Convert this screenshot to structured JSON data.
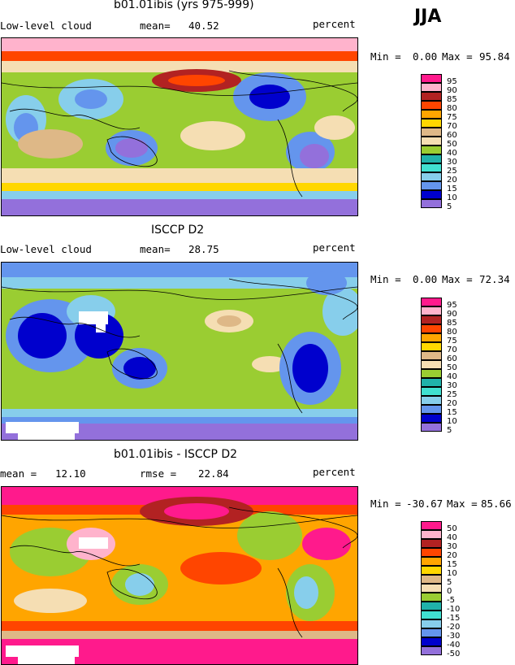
{
  "season": "JJA",
  "panels": [
    {
      "title": "b01.01ibis (yrs 975-999)",
      "left_label": "Low-level cloud",
      "stat_label": "mean=",
      "stat_value": "40.52",
      "units": "percent",
      "minmax_label": "Min =",
      "min": "0.00",
      "max_label": "Max =",
      "max": "95.84",
      "legend": {
        "labels": [
          "95",
          "90",
          "85",
          "80",
          "75",
          "70",
          "60",
          "50",
          "40",
          "30",
          "25",
          "20",
          "15",
          "10",
          "5"
        ],
        "colors": [
          "#ff1a8c",
          "#ffb3cc",
          "#b22222",
          "#ff4500",
          "#ffa500",
          "#ffd700",
          "#deb887",
          "#f5deb3",
          "#9acd32",
          "#20b2aa",
          "#40e0d0",
          "#87ceeb",
          "#6495ed",
          "#0000cd",
          "#9370db"
        ]
      }
    },
    {
      "title": "ISCCP D2",
      "left_label": "Low-level cloud",
      "stat_label": "mean=",
      "stat_value": "28.75",
      "units": "percent",
      "minmax_label": "Min =",
      "min": "0.00",
      "max_label": "Max =",
      "max": "72.34",
      "legend": {
        "labels": [
          "95",
          "90",
          "85",
          "80",
          "75",
          "70",
          "60",
          "50",
          "40",
          "30",
          "25",
          "20",
          "15",
          "10",
          "5"
        ],
        "colors": [
          "#ff1a8c",
          "#ffb3cc",
          "#b22222",
          "#ff4500",
          "#ffa500",
          "#ffd700",
          "#deb887",
          "#f5deb3",
          "#9acd32",
          "#20b2aa",
          "#40e0d0",
          "#87ceeb",
          "#6495ed",
          "#0000cd",
          "#9370db"
        ]
      }
    },
    {
      "title": "b01.01ibis - ISCCP D2",
      "left_label": "mean =",
      "left_value": "12.10",
      "stat_label": "rmse =",
      "stat_value": "22.84",
      "units": "percent",
      "minmax_label": "Min =",
      "min": "-30.67",
      "max_label": "Max =",
      "max": "85.66",
      "legend": {
        "labels": [
          "50",
          "40",
          "30",
          "20",
          "15",
          "10",
          "5",
          "0",
          "-5",
          "-10",
          "-15",
          "-20",
          "-30",
          "-40",
          "-50"
        ],
        "colors": [
          "#ff1a8c",
          "#ffb3cc",
          "#b22222",
          "#ff4500",
          "#ffa500",
          "#ffd700",
          "#deb887",
          "#f5deb3",
          "#9acd32",
          "#20b2aa",
          "#40e0d0",
          "#87ceeb",
          "#6495ed",
          "#0000cd",
          "#9370db"
        ]
      }
    }
  ]
}
